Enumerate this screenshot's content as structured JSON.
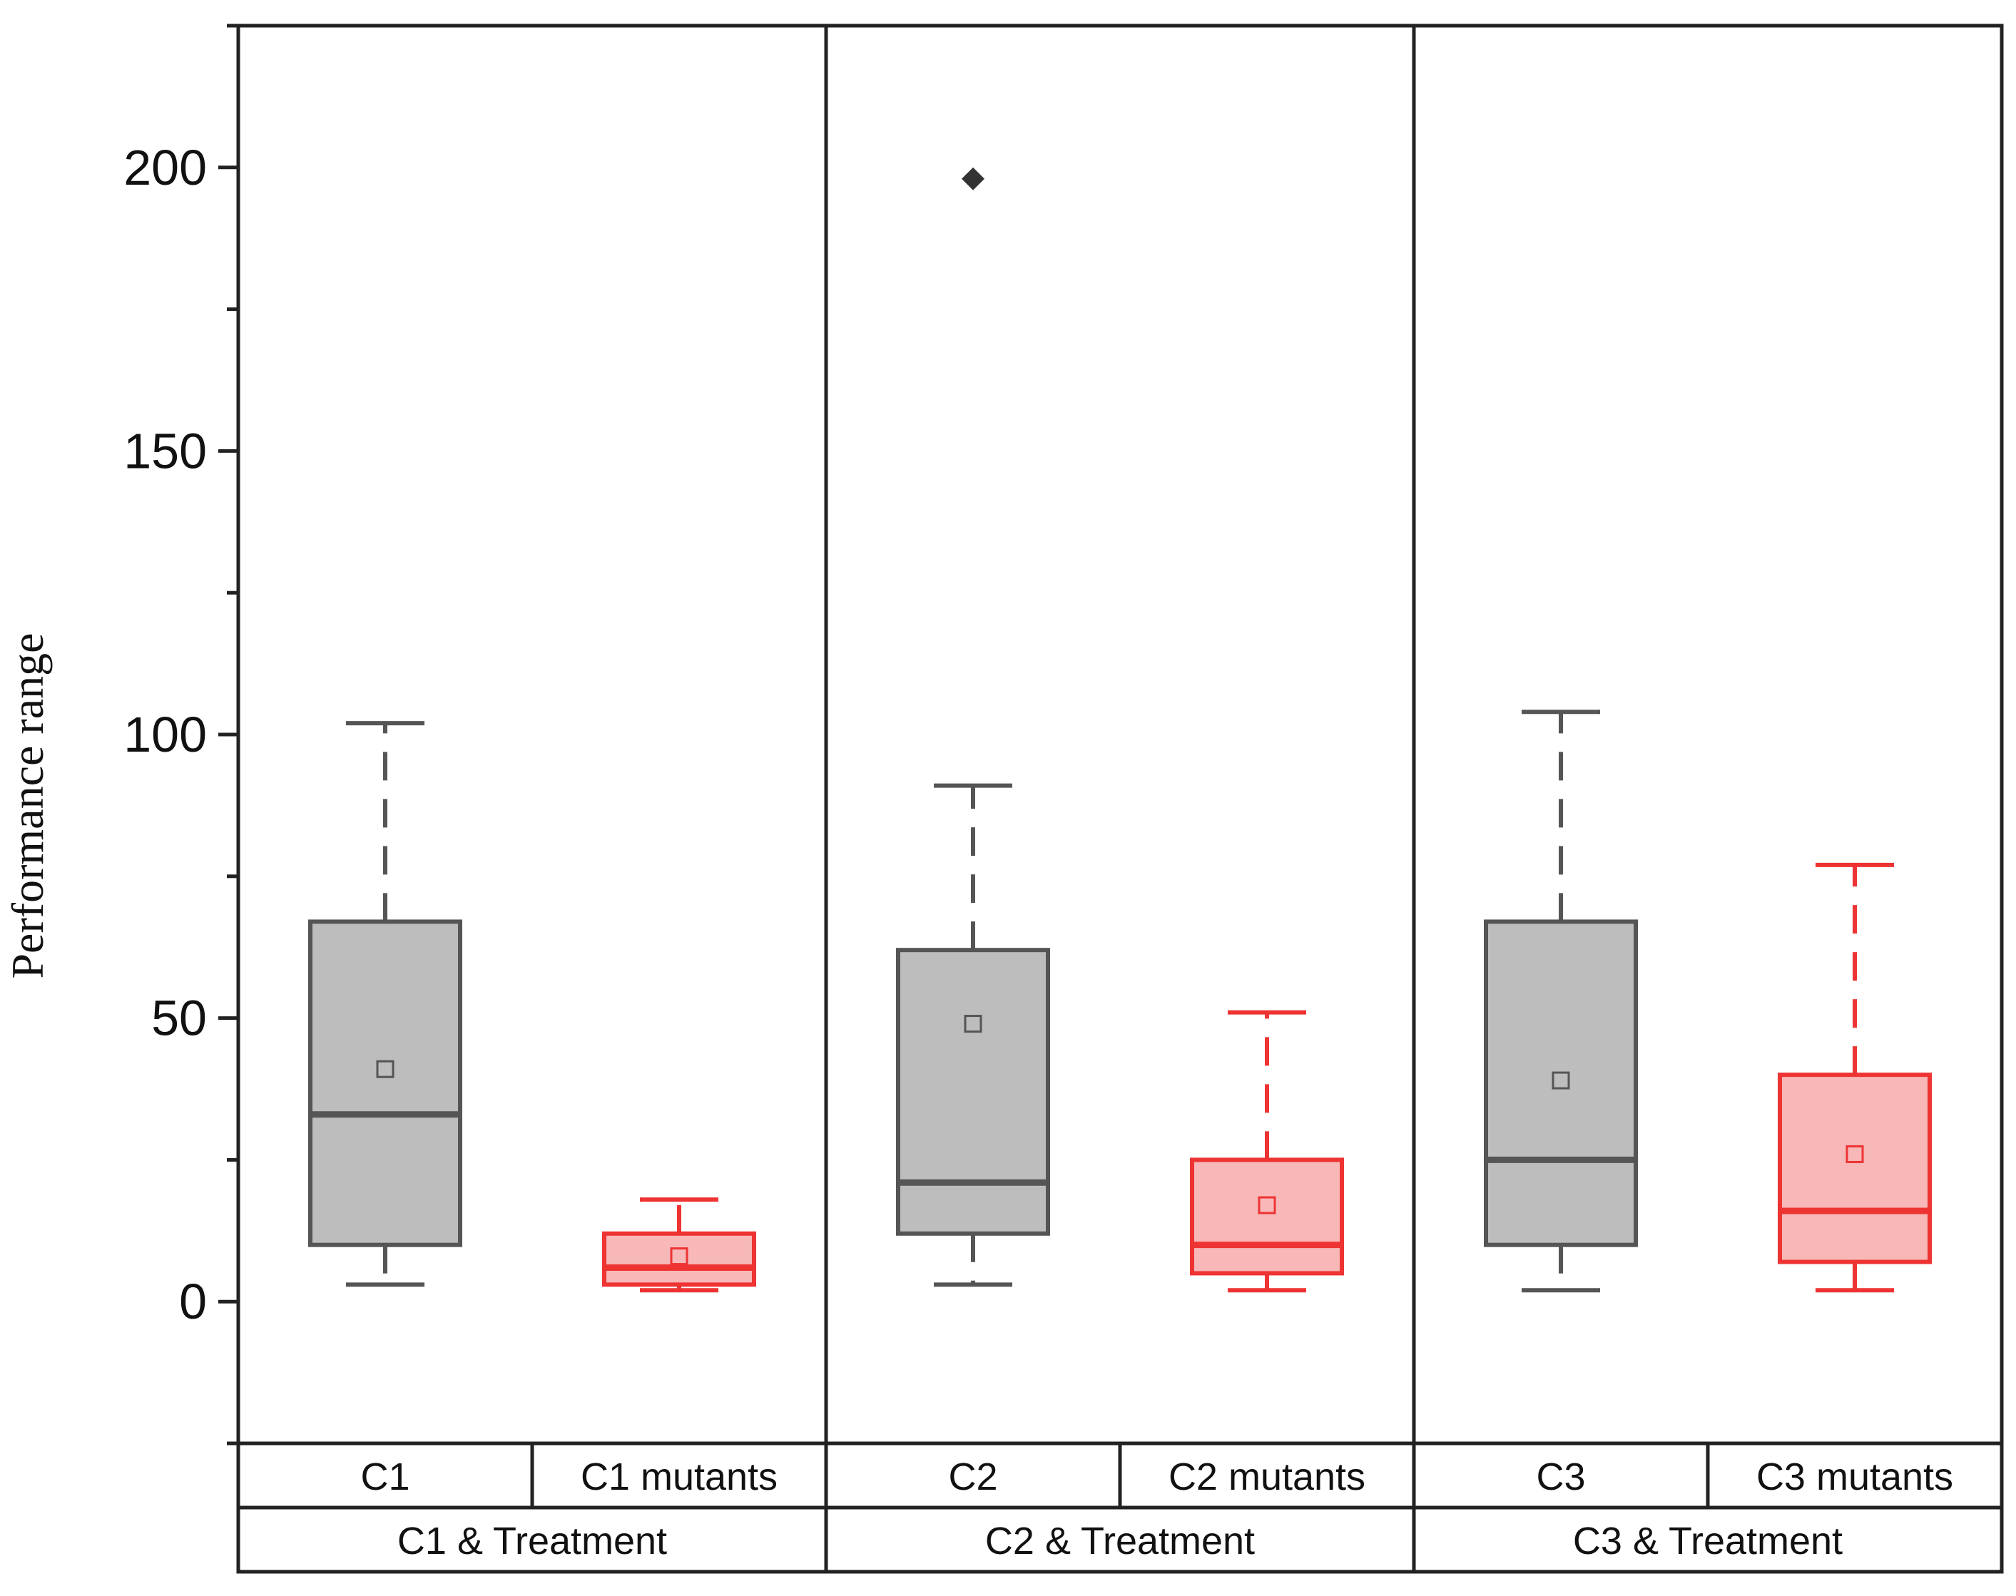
{
  "chart_data": {
    "type": "box",
    "ylabel": "Performance range",
    "ylim": [
      -25,
      225
    ],
    "yticks": [
      0,
      50,
      100,
      150,
      200
    ],
    "yticks_minor": [
      -25,
      25,
      75,
      125,
      175,
      225
    ],
    "groups": [
      {
        "label": "C1 & Treatment",
        "boxes": [
          {
            "label": "C1",
            "color": "#555555",
            "fill": "#bdbdbd",
            "whisker_low": 3,
            "q1": 10,
            "median": 33,
            "q3": 67,
            "whisker_high": 102,
            "mean": 41,
            "outliers": []
          },
          {
            "label": "C1 mutants",
            "color": "#ee3333",
            "fill": "#f8b8b8",
            "whisker_low": 2,
            "q1": 3,
            "median": 6,
            "q3": 12,
            "whisker_high": 18,
            "mean": 8,
            "outliers": []
          }
        ]
      },
      {
        "label": "C2 & Treatment",
        "boxes": [
          {
            "label": "C2",
            "color": "#555555",
            "fill": "#bdbdbd",
            "whisker_low": 3,
            "q1": 12,
            "median": 21,
            "q3": 62,
            "whisker_high": 91,
            "mean": 49,
            "outliers": [
              198
            ]
          },
          {
            "label": "C2 mutants",
            "color": "#ee3333",
            "fill": "#f8b8b8",
            "whisker_low": 2,
            "q1": 5,
            "median": 10,
            "q3": 25,
            "whisker_high": 51,
            "mean": 17,
            "outliers": []
          }
        ]
      },
      {
        "label": "C3 & Treatment",
        "boxes": [
          {
            "label": "C3",
            "color": "#555555",
            "fill": "#bdbdbd",
            "whisker_low": 2,
            "q1": 10,
            "median": 25,
            "q3": 67,
            "whisker_high": 104,
            "mean": 39,
            "outliers": []
          },
          {
            "label": "C3 mutants",
            "color": "#ee3333",
            "fill": "#f8b8b8",
            "whisker_low": 2,
            "q1": 7,
            "median": 16,
            "q3": 40,
            "whisker_high": 77,
            "mean": 26,
            "outliers": []
          }
        ]
      }
    ]
  }
}
